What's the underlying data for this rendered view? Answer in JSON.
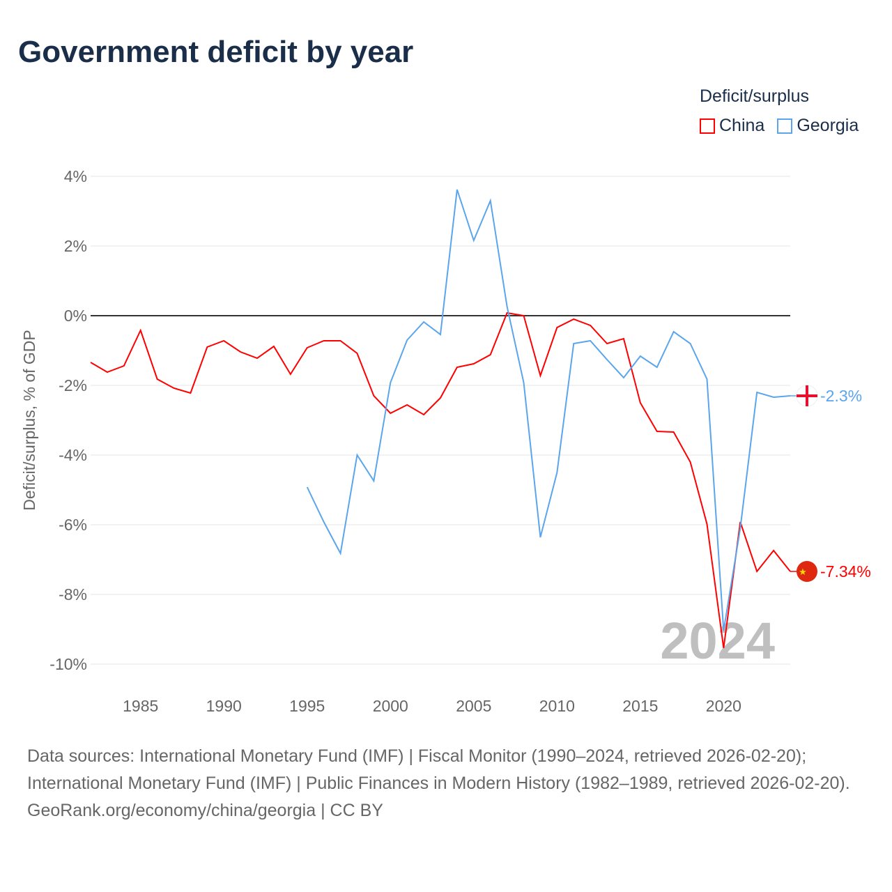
{
  "title": "Government deficit by year",
  "legend": {
    "title": "Deficit/surplus",
    "items": [
      {
        "label": "China",
        "color": "#ff0000"
      },
      {
        "label": "Georgia",
        "color": "#5aa5ec"
      }
    ]
  },
  "chart_data": {
    "type": "line",
    "title": "Government deficit by year",
    "ylabel": "Deficit/surplus, % of GDP",
    "xlabel": "",
    "xlim": [
      1982,
      2024
    ],
    "ylim": [
      -10,
      4
    ],
    "yticks": [
      4,
      2,
      0,
      -2,
      -4,
      -6,
      -8,
      -10
    ],
    "ytick_labels": [
      "4%",
      "2%",
      "0%",
      "-2%",
      "-4%",
      "-6%",
      "-8%",
      "-10%"
    ],
    "xticks": [
      1985,
      1990,
      1995,
      2000,
      2005,
      2010,
      2015,
      2020
    ],
    "xtick_labels": [
      "1985",
      "1990",
      "1995",
      "2000",
      "2005",
      "2010",
      "2015",
      "2020"
    ],
    "watermark_year": "2024",
    "grid": true,
    "series": [
      {
        "name": "China",
        "color": "#ff0000",
        "end_label": "-7.34%",
        "flag": "china-flag",
        "x": [
          1982,
          1983,
          1984,
          1985,
          1986,
          1987,
          1988,
          1989,
          1990,
          1991,
          1992,
          1993,
          1994,
          1995,
          1996,
          1997,
          1998,
          1999,
          2000,
          2001,
          2002,
          2003,
          2004,
          2005,
          2006,
          2007,
          2008,
          2009,
          2010,
          2011,
          2012,
          2013,
          2014,
          2015,
          2016,
          2017,
          2018,
          2019,
          2020,
          2021,
          2022,
          2023,
          2024
        ],
        "values": [
          -1.34,
          -1.62,
          -1.44,
          -0.42,
          -1.82,
          -2.08,
          -2.22,
          -0.9,
          -0.72,
          -1.04,
          -1.22,
          -0.88,
          -1.68,
          -0.92,
          -0.72,
          -0.72,
          -1.08,
          -2.3,
          -2.8,
          -2.56,
          -2.84,
          -2.36,
          -1.48,
          -1.38,
          -1.12,
          0.08,
          0.0,
          -1.72,
          -0.34,
          -0.1,
          -0.28,
          -0.8,
          -0.66,
          -2.5,
          -3.32,
          -3.34,
          -4.2,
          -5.98,
          -9.54,
          -5.92,
          -7.34,
          -6.74,
          -7.34
        ]
      },
      {
        "name": "Georgia",
        "color": "#5aa5ec",
        "end_label": "-2.3%",
        "flag": "georgia-flag",
        "x": [
          1995,
          1996,
          1997,
          1998,
          1999,
          2000,
          2001,
          2002,
          2003,
          2004,
          2005,
          2006,
          2007,
          2008,
          2009,
          2010,
          2011,
          2012,
          2013,
          2014,
          2015,
          2016,
          2017,
          2018,
          2019,
          2020,
          2021,
          2022,
          2023,
          2024
        ],
        "values": [
          -4.92,
          -5.92,
          -6.82,
          -4.0,
          -4.74,
          -1.92,
          -0.7,
          -0.18,
          -0.54,
          3.62,
          2.16,
          3.3,
          0.26,
          -1.92,
          -6.36,
          -4.5,
          -0.8,
          -0.72,
          -1.26,
          -1.78,
          -1.16,
          -1.48,
          -0.46,
          -0.8,
          -1.82,
          -9.04,
          -6.1,
          -2.2,
          -2.34,
          -2.3
        ]
      }
    ]
  },
  "footer": {
    "sources": "Data sources: International Monetary Fund (IMF) | Fiscal Monitor (1990–2024, retrieved 2026-02-20); International Monetary Fund (IMF) | Public Finances in Modern History (1982–1989, retrieved 2026-02-20).",
    "credit": "GeoRank.org/economy/china/georgia | CC BY"
  }
}
